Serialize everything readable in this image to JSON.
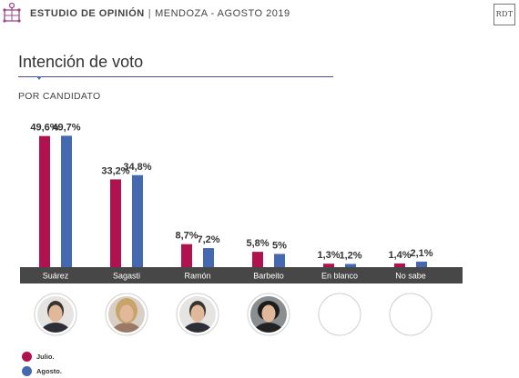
{
  "header": {
    "study_label": "ESTUDIO DE OPINIÓN",
    "separator": "|",
    "place_date": "MENDOZA - AGOSTO 2019",
    "brand_right": "RDT"
  },
  "colors": {
    "julio": "#b0124f",
    "agosto": "#4469b0",
    "category_band": "#474747",
    "title_rule": "#4a4a9a"
  },
  "chart_data": {
    "type": "bar",
    "title": "Intención de voto",
    "subtitle": "POR CANDIDATO",
    "xlabel": "",
    "ylabel": "",
    "ylim": [
      0,
      55
    ],
    "grid": false,
    "legend_position": "bottom-left",
    "categories": [
      "Suárez",
      "Sagasti",
      "Ramón",
      "Barbeito",
      "En blanco",
      "No sabe"
    ],
    "series": [
      {
        "name": "Julio.",
        "values": [
          49.6,
          33.2,
          8.7,
          5.8,
          1.3,
          1.4
        ],
        "labels": [
          "49,6%",
          "33,2%",
          "8,7%",
          "5,8%",
          "1,3%",
          "1,4%"
        ]
      },
      {
        "name": "Agosto.",
        "values": [
          49.7,
          34.8,
          7.2,
          5,
          1.2,
          2.1
        ],
        "labels": [
          "49,7%",
          "34,8%",
          "7,2%",
          "5%",
          "1,2%",
          "2,1%"
        ]
      }
    ],
    "portraits": [
      "photo",
      "photo",
      "photo",
      "photo",
      "empty",
      "empty"
    ]
  }
}
